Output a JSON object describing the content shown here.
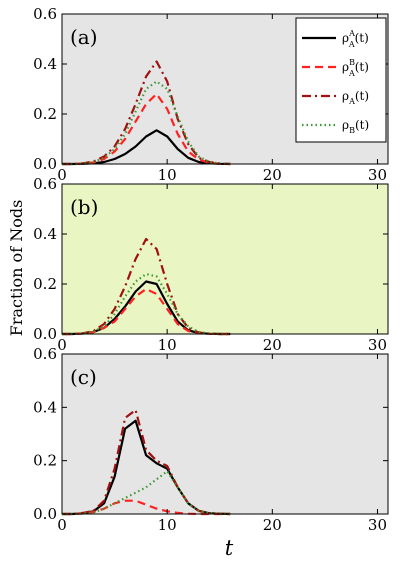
{
  "figure": {
    "ylabel": "Fraction of Nods",
    "xlabel": "t"
  },
  "legend": [
    {
      "key": "rhoAA",
      "base": "ρ",
      "sub": "A",
      "sup": "A",
      "arg": "(t)"
    },
    {
      "key": "rhoAB",
      "base": "ρ",
      "sub": "A",
      "sup": "B",
      "arg": "(t)"
    },
    {
      "key": "rhoA",
      "base": "ρ",
      "sub": "A",
      "sup": "",
      "arg": "(t)"
    },
    {
      "key": "rhoB",
      "base": "ρ",
      "sub": "B",
      "sup": "",
      "arg": "(t)"
    }
  ],
  "chart_data": [
    {
      "type": "line",
      "panel": "(a)",
      "background": "#e5e5e5",
      "xlim": [
        0,
        31
      ],
      "ylim": [
        0,
        0.6
      ],
      "xticks": [
        0,
        10,
        20,
        30
      ],
      "yticks": [
        0.0,
        0.2,
        0.4,
        0.6
      ],
      "ytick_labels": [
        "0.0",
        "0.2",
        "0.4",
        "0.6"
      ],
      "legend_position": "top-right",
      "x": [
        0,
        1,
        2,
        3,
        4,
        5,
        6,
        7,
        8,
        9,
        10,
        11,
        12,
        13,
        14,
        15,
        16
      ],
      "series": [
        {
          "key": "rhoAA",
          "color": "#000000",
          "dash": "solid",
          "values": [
            0,
            0,
            0.001,
            0.003,
            0.008,
            0.02,
            0.04,
            0.07,
            0.11,
            0.135,
            0.11,
            0.06,
            0.025,
            0.008,
            0.003,
            0.001,
            0
          ]
        },
        {
          "key": "rhoAB",
          "color": "#ff2222",
          "dash": "dashed",
          "values": [
            0,
            0,
            0.002,
            0.006,
            0.02,
            0.05,
            0.1,
            0.17,
            0.24,
            0.28,
            0.22,
            0.12,
            0.05,
            0.018,
            0.005,
            0.001,
            0
          ]
        },
        {
          "key": "rhoA",
          "color": "#a01010",
          "dash": "dashdot",
          "values": [
            0,
            0,
            0.003,
            0.01,
            0.03,
            0.07,
            0.14,
            0.24,
            0.35,
            0.41,
            0.33,
            0.18,
            0.08,
            0.025,
            0.008,
            0.002,
            0
          ]
        },
        {
          "key": "rhoB",
          "color": "#3a9a30",
          "dash": "dotted",
          "values": [
            0,
            0,
            0.002,
            0.008,
            0.025,
            0.06,
            0.12,
            0.21,
            0.3,
            0.33,
            0.3,
            0.19,
            0.09,
            0.03,
            0.008,
            0.002,
            0
          ]
        }
      ]
    },
    {
      "type": "line",
      "panel": "(b)",
      "background": "#eaf5c4",
      "xlim": [
        0,
        31
      ],
      "ylim": [
        0,
        0.6
      ],
      "xticks": [
        0,
        10,
        20,
        30
      ],
      "yticks": [
        0.0,
        0.2,
        0.4,
        0.6
      ],
      "ytick_labels": [
        "0.0",
        "0.2",
        "0.4",
        "0.6"
      ],
      "x": [
        0,
        1,
        2,
        3,
        4,
        5,
        6,
        7,
        8,
        9,
        10,
        11,
        12,
        13,
        14,
        15,
        16
      ],
      "series": [
        {
          "key": "rhoAA",
          "color": "#000000",
          "dash": "solid",
          "values": [
            0,
            0,
            0.002,
            0.008,
            0.025,
            0.06,
            0.11,
            0.17,
            0.21,
            0.2,
            0.12,
            0.05,
            0.015,
            0.004,
            0.001,
            0,
            0
          ]
        },
        {
          "key": "rhoAB",
          "color": "#ff2222",
          "dash": "dashed",
          "values": [
            0,
            0,
            0.002,
            0.008,
            0.025,
            0.05,
            0.1,
            0.15,
            0.18,
            0.16,
            0.1,
            0.04,
            0.012,
            0.003,
            0.001,
            0,
            0
          ]
        },
        {
          "key": "rhoA",
          "color": "#a01010",
          "dash": "dashdot",
          "values": [
            0,
            0,
            0.003,
            0.012,
            0.04,
            0.1,
            0.19,
            0.3,
            0.38,
            0.34,
            0.2,
            0.08,
            0.025,
            0.006,
            0.002,
            0,
            0
          ]
        },
        {
          "key": "rhoB",
          "color": "#3a9a30",
          "dash": "dotted",
          "values": [
            0,
            0,
            0.002,
            0.01,
            0.03,
            0.08,
            0.15,
            0.21,
            0.24,
            0.23,
            0.16,
            0.08,
            0.03,
            0.008,
            0.002,
            0,
            0
          ]
        }
      ]
    },
    {
      "type": "line",
      "panel": "(c)",
      "background": "#e5e5e5",
      "xlim": [
        0,
        31
      ],
      "ylim": [
        0,
        0.6
      ],
      "xticks": [
        0,
        10,
        20,
        30
      ],
      "yticks": [
        0.0,
        0.2,
        0.4,
        0.6
      ],
      "ytick_labels": [
        "0.0",
        "0.2",
        "0.4",
        "0.6"
      ],
      "x": [
        0,
        1,
        2,
        3,
        4,
        5,
        6,
        7,
        8,
        9,
        10,
        11,
        12,
        13,
        14,
        15,
        16
      ],
      "series": [
        {
          "key": "rhoAA",
          "color": "#000000",
          "dash": "solid",
          "values": [
            0,
            0,
            0.003,
            0.01,
            0.04,
            0.14,
            0.32,
            0.35,
            0.22,
            0.19,
            0.17,
            0.1,
            0.04,
            0.012,
            0.003,
            0.001,
            0
          ]
        },
        {
          "key": "rhoAB",
          "color": "#ff2222",
          "dash": "dashed",
          "values": [
            0,
            0,
            0.002,
            0.008,
            0.02,
            0.04,
            0.05,
            0.05,
            0.035,
            0.02,
            0.01,
            0.004,
            0.001,
            0,
            0,
            0,
            0
          ]
        },
        {
          "key": "rhoA",
          "color": "#a01010",
          "dash": "dashdot",
          "values": [
            0,
            0,
            0.004,
            0.012,
            0.05,
            0.17,
            0.36,
            0.39,
            0.24,
            0.2,
            0.18,
            0.1,
            0.04,
            0.012,
            0.003,
            0.001,
            0
          ]
        },
        {
          "key": "rhoB",
          "color": "#3a9a30",
          "dash": "dotted",
          "values": [
            0,
            0,
            0.002,
            0.006,
            0.02,
            0.04,
            0.06,
            0.08,
            0.1,
            0.13,
            0.16,
            0.1,
            0.04,
            0.012,
            0.003,
            0.001,
            0
          ]
        }
      ]
    }
  ]
}
